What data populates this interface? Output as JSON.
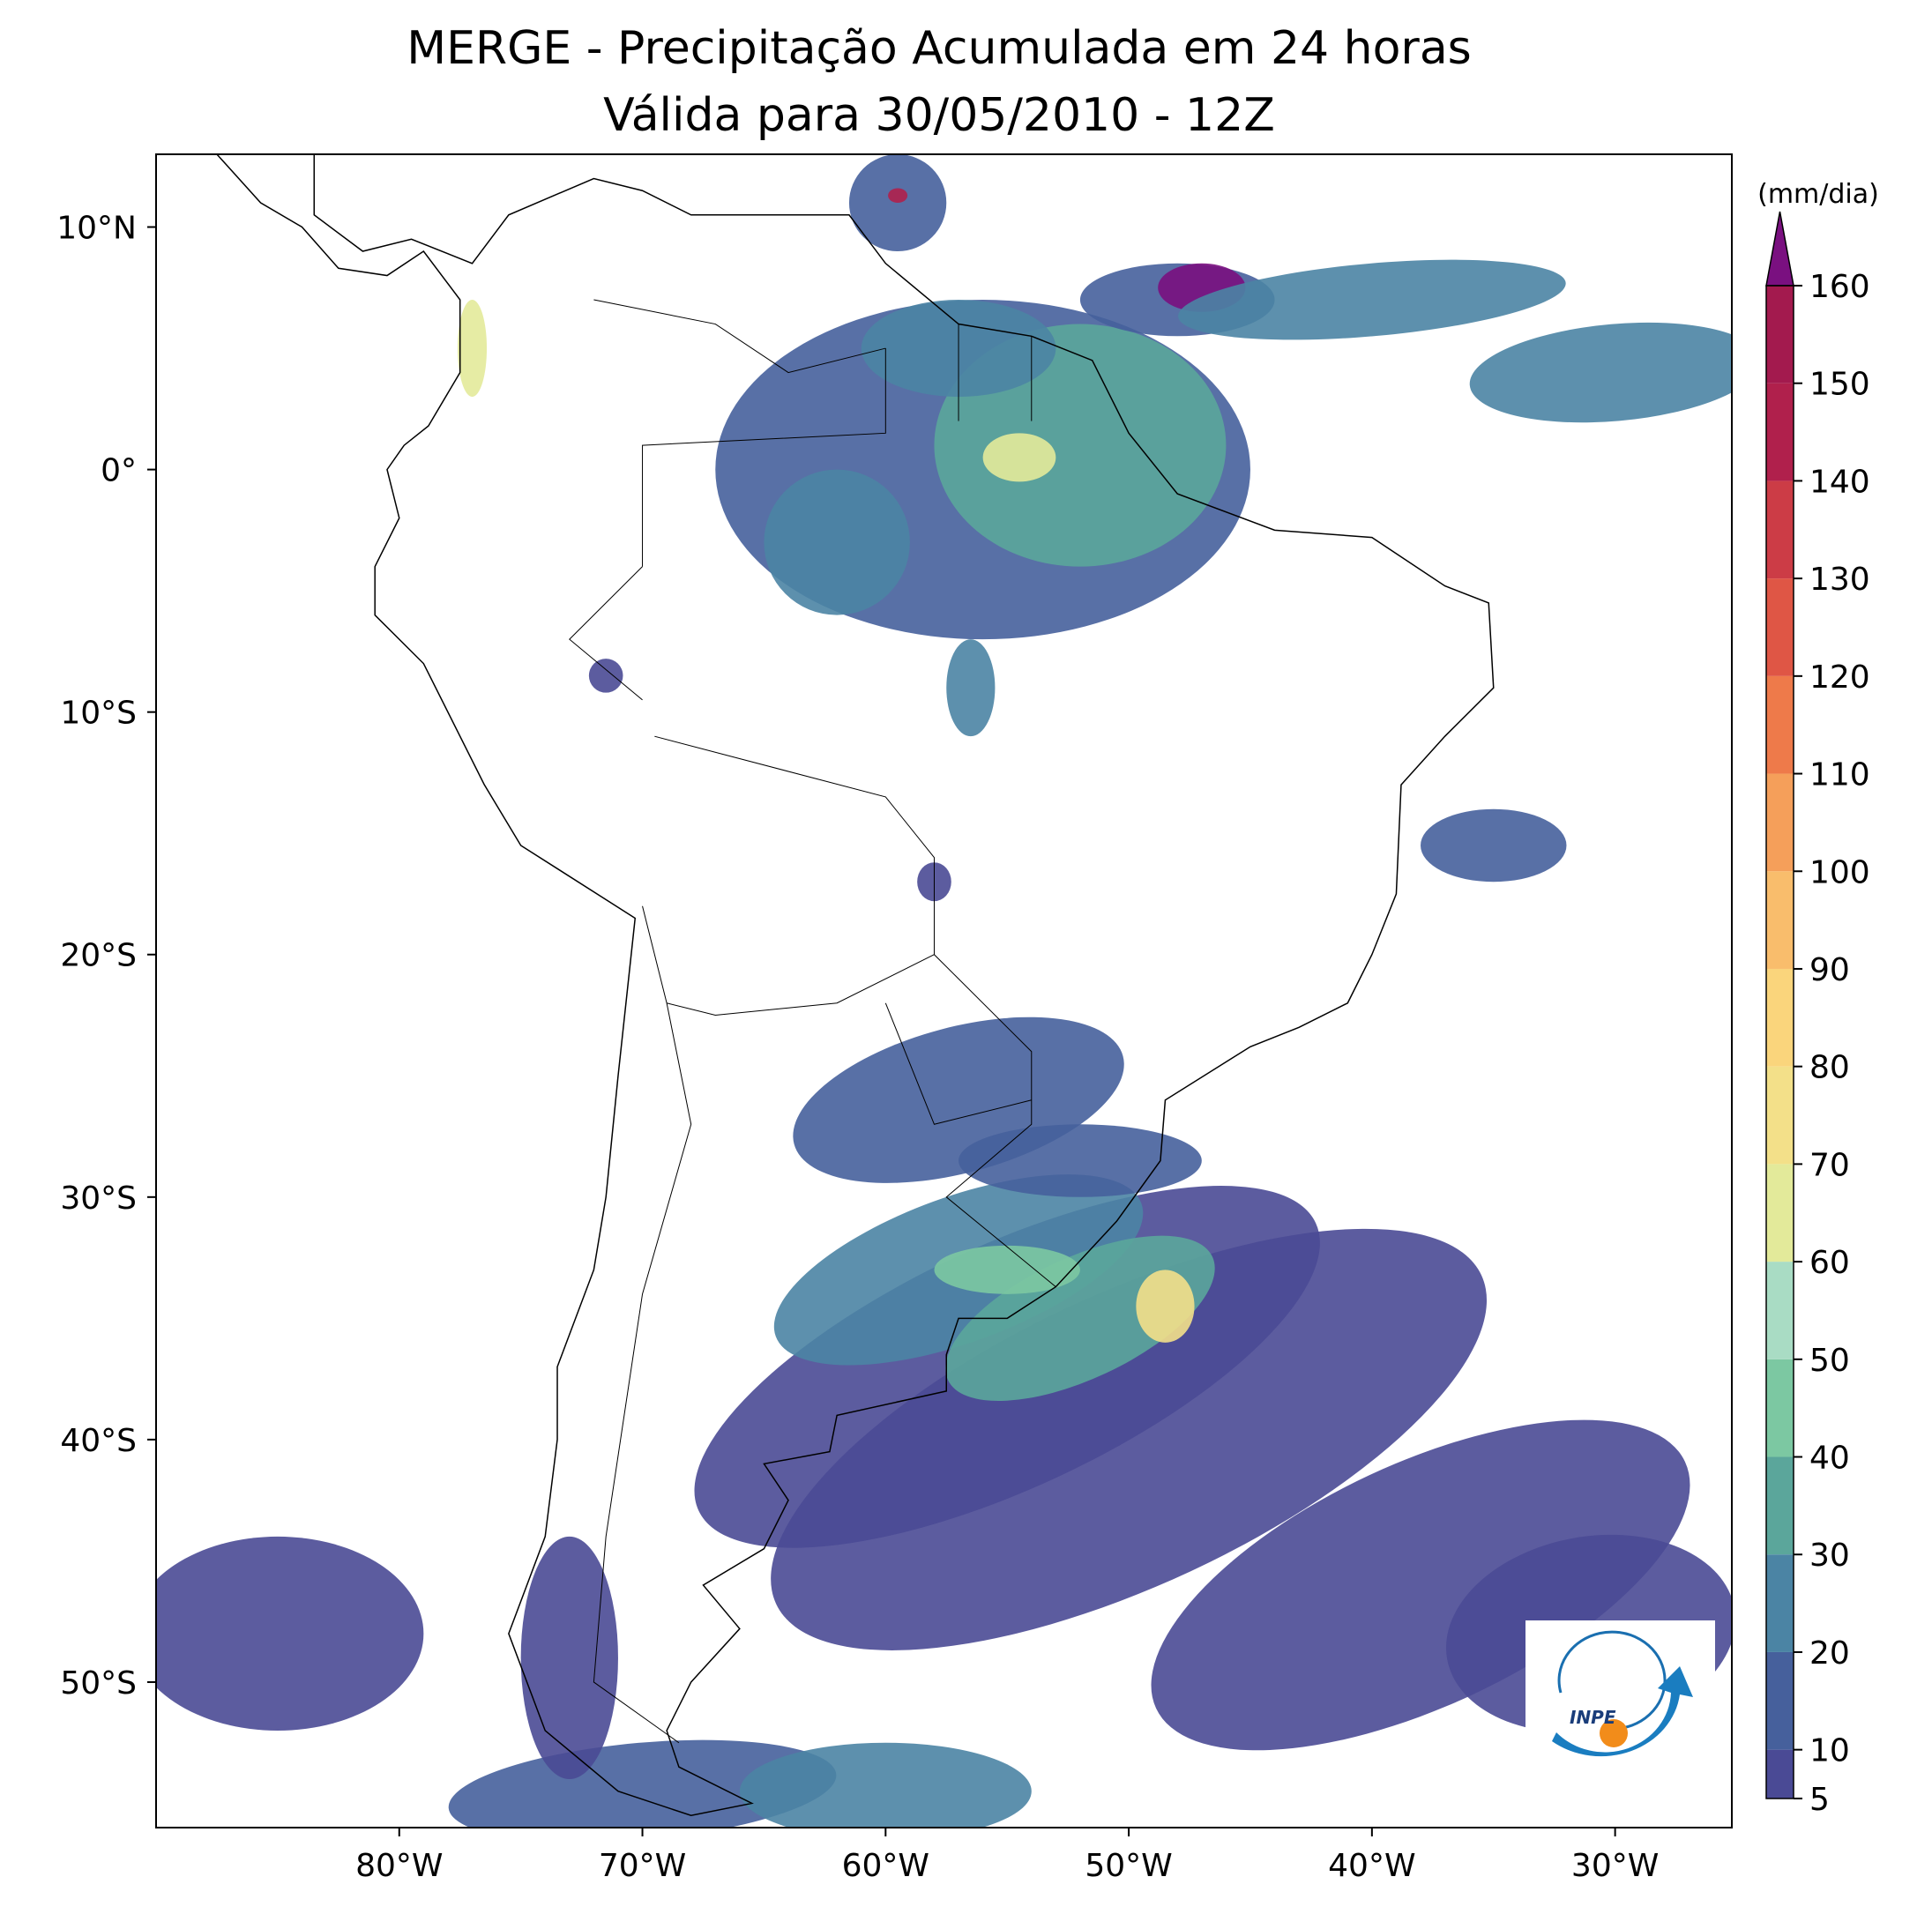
{
  "chart_data": {
    "type": "map",
    "title": "MERGE - Precipitação Acumulada em 24 horas",
    "subtitle": "Válida para 30/05/2010 - 12Z",
    "xlim": [
      -90,
      -25.2
    ],
    "ylim": [
      -56,
      13
    ],
    "xticks": [
      {
        "value": -80,
        "label": "80°W"
      },
      {
        "value": -70,
        "label": "70°W"
      },
      {
        "value": -60,
        "label": "60°W"
      },
      {
        "value": -50,
        "label": "50°W"
      },
      {
        "value": -40,
        "label": "40°W"
      },
      {
        "value": -30,
        "label": "30°W"
      }
    ],
    "yticks": [
      {
        "value": 10,
        "label": "10°N"
      },
      {
        "value": 0,
        "label": "0°"
      },
      {
        "value": -10,
        "label": "10°S"
      },
      {
        "value": -20,
        "label": "20°S"
      },
      {
        "value": -30,
        "label": "30°S"
      },
      {
        "value": -40,
        "label": "40°S"
      },
      {
        "value": -50,
        "label": "50°S"
      }
    ],
    "colorbar": {
      "label": "(mm/dia)",
      "ticks": [
        5,
        10,
        20,
        30,
        40,
        50,
        60,
        70,
        80,
        90,
        100,
        110,
        120,
        130,
        140,
        150,
        160
      ],
      "colors": [
        "#4a4a95",
        "#46609c",
        "#4b84a4",
        "#5ba69b",
        "#7cc8a2",
        "#a9dcc4",
        "#e3ea9a",
        "#f3e089",
        "#fad57c",
        "#f9bd6c",
        "#f59f5a",
        "#ee7a4a",
        "#df5645",
        "#cc3c46",
        "#b0204c",
        "#a31a4e"
      ],
      "extend_color": "#7a1080"
    },
    "logo": {
      "text": "INPE"
    }
  }
}
